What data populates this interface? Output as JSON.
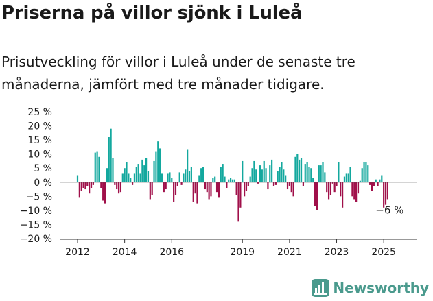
{
  "title": "Priserna på villor sjönk i Luleå",
  "subtitle": "Prisutveckling för villor i Luleå under de senaste tre månaderna, jämfört med tre månader tidigare.",
  "brand": "Newsworthy",
  "colors": {
    "positive": "#13a89e",
    "negative": "#a0104a",
    "axis": "#333333",
    "brand": "#4a9a8d"
  },
  "chart_data": {
    "type": "bar",
    "title": "Priserna på villor sjönk i Luleå",
    "ylim": [
      -20,
      25
    ],
    "y_ticks": [
      25,
      20,
      15,
      10,
      5,
      0,
      -5,
      -10,
      -15,
      -20
    ],
    "y_tick_labels": [
      "25 %",
      "20 %",
      "15 %",
      "10 %",
      "5 %",
      "0 %",
      "−5 %",
      "−10 %",
      "−15 %",
      "−20 %"
    ],
    "x_ticks": [
      "2012",
      "2014",
      "2016",
      "2019",
      "2021",
      "2023",
      "2025"
    ],
    "annotation": "−6 %",
    "x_start": "2012-01",
    "values": [
      2.5,
      -5.5,
      -3,
      -2,
      -2.5,
      -1.5,
      -4,
      -2,
      -1,
      10.5,
      11,
      9,
      -2,
      -6.5,
      -7.5,
      5,
      16,
      19,
      8.5,
      -1,
      -2.5,
      -4,
      -3.5,
      3,
      5,
      7,
      3,
      1.5,
      -1,
      3,
      5.5,
      6.5,
      3,
      8,
      6,
      8.5,
      4,
      -6,
      -4.5,
      7.5,
      11,
      14.5,
      12,
      3,
      -3.5,
      -2.5,
      3,
      3.5,
      1.5,
      -7,
      -4.5,
      -1.5,
      3.5,
      -1,
      3,
      4.5,
      11.5,
      4,
      5.5,
      -7,
      -4,
      -7.5,
      2.5,
      5,
      5.5,
      -2.5,
      -3.5,
      -6,
      -5,
      1.5,
      2,
      -3.5,
      -5.5,
      5.5,
      6.5,
      2,
      -2,
      1,
      1.5,
      1,
      1,
      -4.5,
      -14,
      -9,
      7.5,
      -5,
      -3,
      -1.5,
      2,
      5,
      7.5,
      4.5,
      -0.5,
      6,
      4.5,
      7.5,
      5,
      -2.5,
      6,
      8,
      -1.5,
      -1,
      4,
      5.5,
      7,
      4.5,
      2.5,
      -2.5,
      -1.5,
      -3.5,
      -5,
      9,
      10,
      8,
      8.5,
      -1.5,
      6.5,
      7,
      5.5,
      5,
      1.5,
      -8.5,
      -10,
      6,
      6,
      7,
      3.5,
      -3.5,
      -6,
      -4.5,
      -0.5,
      -3.5,
      -1.5,
      7,
      -5,
      -9,
      2,
      3,
      3,
      5.5,
      -5,
      -6,
      -7,
      -4,
      0.5,
      5,
      7,
      7,
      6,
      -1,
      -3,
      -1.5,
      1,
      -1.5,
      1,
      2.5,
      -9,
      -8,
      -6
    ]
  }
}
